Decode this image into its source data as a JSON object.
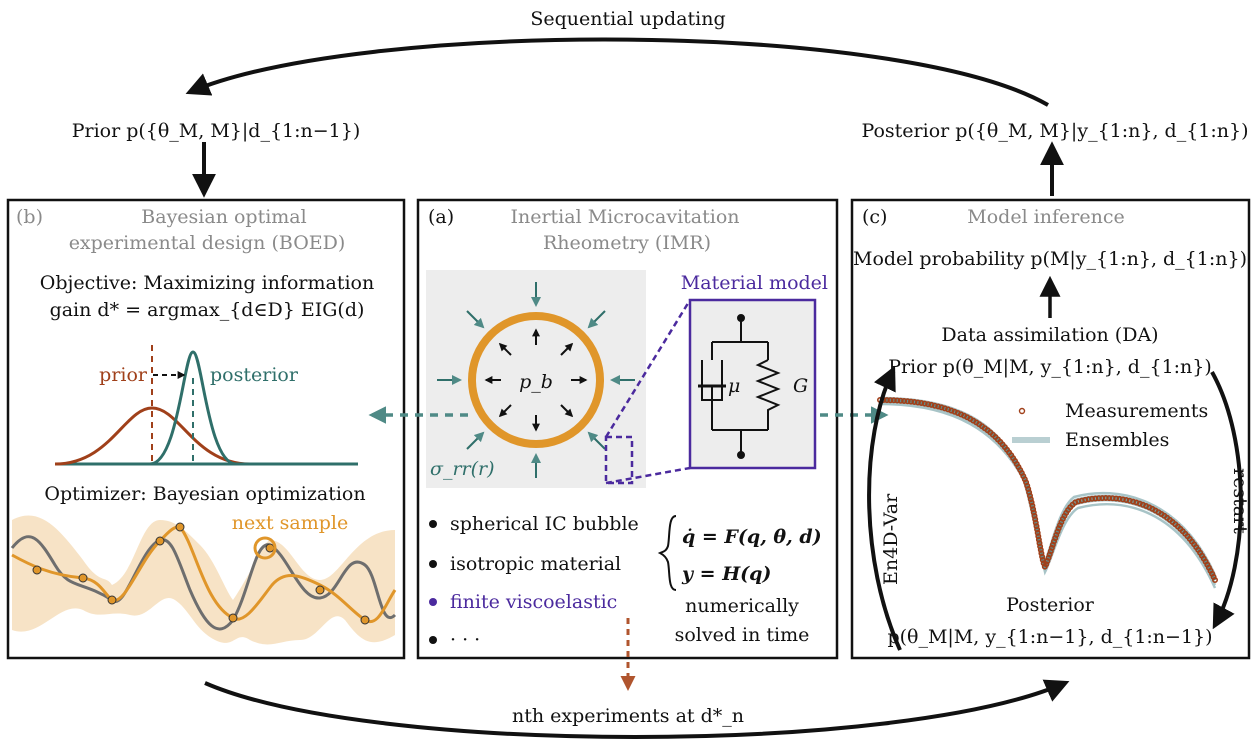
{
  "colors": {
    "rust": "#a0401a",
    "teal": "#2f6f6a",
    "orange": "#e0962a",
    "orange_light": "#f5dcb8",
    "purple": "#4b2a9e",
    "gray_model": "#6e6e6e",
    "panel_gray": "#ededed",
    "ensemble": "#b9cfd2"
  },
  "loop": {
    "top_label": "Sequential updating",
    "prior_label": "Prior p({θ_M, M}|d_{1:n−1})",
    "posterior_label": "Posterior p({θ_M, M}|y_{1:n}, d_{1:n})",
    "bottom_label": "nth experiments at d*_n"
  },
  "panel_b": {
    "tag": "(b)",
    "title_line1": "Bayesian optimal",
    "title_line2": "experimental design (BOED)",
    "objective_line1": "Objective: Maximizing information",
    "objective_line2": "gain d* = argmax_{d∈D} EIG(d)",
    "prior_label": "prior",
    "posterior_label": "posterior",
    "optimizer_label": "Optimizer: Bayesian optimization",
    "next_sample_label": "next sample"
  },
  "panel_a": {
    "tag": "(a)",
    "title_line1": "Inertial Microcavitation",
    "title_line2": "Rheometry (IMR)",
    "pressure_label": "p_b",
    "stress_label": "σ_rr(r)",
    "material_model_label": "Material model",
    "mu_label": "μ",
    "g_label": "G",
    "bullets": [
      "spherical IC bubble",
      "isotropic material",
      "finite viscoelastic",
      "· · ·"
    ],
    "eq1": "q̇ = F(q, θ, d)",
    "eq2": "y = H(q)",
    "numerically": "numerically",
    "solved": "solved in time"
  },
  "panel_c": {
    "tag": "(c)",
    "title": "Model inference",
    "model_prob": "Model probability p(M|y_{1:n}, d_{1:n})",
    "da_label": "Data assimilation (DA)",
    "prior_label": "Prior p(θ_M|M, y_{1:n}, d_{1:n})",
    "legend_measurements": "Measurements",
    "legend_ensembles": "Ensembles",
    "left_arrow_label": "En4D-Var",
    "right_arrow_label": "restart",
    "posterior_label": "Posterior",
    "posterior_formula": "p(θ_M|M, y_{1:n−1}, d_{1:n−1})"
  }
}
